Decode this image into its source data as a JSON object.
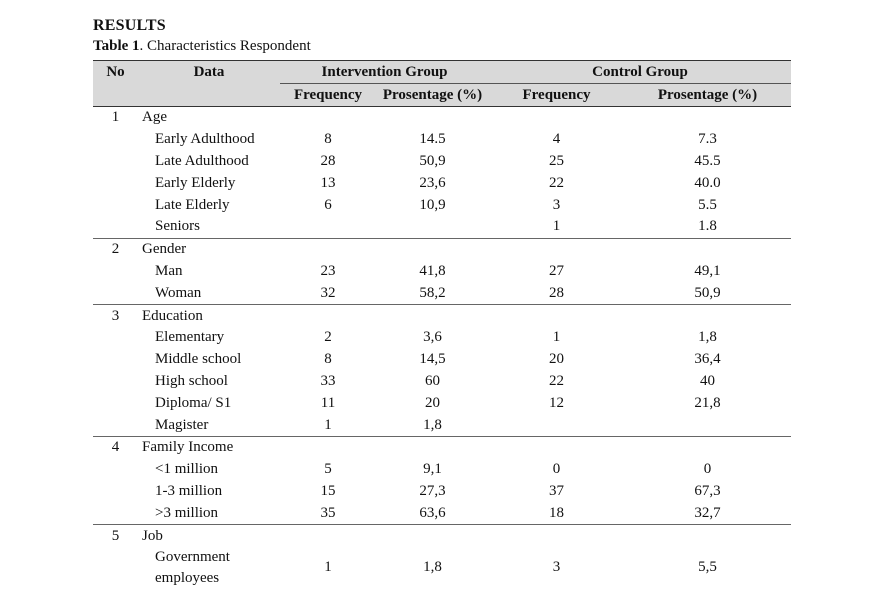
{
  "heading": "RESULTS",
  "caption": {
    "label": "Table 1",
    "text": ". Characteristics Respondent"
  },
  "columns": {
    "no": "No",
    "data": "Data",
    "intervention": "Intervention Group",
    "control": "Control Group",
    "frequency": "Frequency",
    "percentage": "Prosentage (%)"
  },
  "sections": [
    {
      "no": "1",
      "title": "Age",
      "rows": [
        {
          "label": "Early Adulthood",
          "int_f": "8",
          "int_p": "14.5",
          "ctl_f": "4",
          "ctl_p": "7.3"
        },
        {
          "label": "Late Adulthood",
          "int_f": "28",
          "int_p": "50,9",
          "ctl_f": "25",
          "ctl_p": "45.5"
        },
        {
          "label": "Early Elderly",
          "int_f": "13",
          "int_p": "23,6",
          "ctl_f": "22",
          "ctl_p": "40.0"
        },
        {
          "label": "Late Elderly",
          "int_f": "6",
          "int_p": "10,9",
          "ctl_f": "3",
          "ctl_p": "5.5"
        },
        {
          "label": "Seniors",
          "int_f": "",
          "int_p": "",
          "ctl_f": "1",
          "ctl_p": "1.8"
        }
      ]
    },
    {
      "no": "2",
      "title": "Gender",
      "rows": [
        {
          "label": "Man",
          "int_f": "23",
          "int_p": "41,8",
          "ctl_f": "27",
          "ctl_p": "49,1"
        },
        {
          "label": "Woman",
          "int_f": "32",
          "int_p": "58,2",
          "ctl_f": "28",
          "ctl_p": "50,9"
        }
      ]
    },
    {
      "no": "3",
      "title": "Education",
      "rows": [
        {
          "label": "Elementary",
          "int_f": "2",
          "int_p": "3,6",
          "ctl_f": "1",
          "ctl_p": "1,8"
        },
        {
          "label": "Middle school",
          "int_f": "8",
          "int_p": "14,5",
          "ctl_f": "20",
          "ctl_p": "36,4"
        },
        {
          "label": "High school",
          "int_f": "33",
          "int_p": "60",
          "ctl_f": "22",
          "ctl_p": "40"
        },
        {
          "label": "Diploma/ S1",
          "int_f": "11",
          "int_p": "20",
          "ctl_f": "12",
          "ctl_p": "21,8"
        },
        {
          "label": "Magister",
          "int_f": "1",
          "int_p": "1,8",
          "ctl_f": "",
          "ctl_p": ""
        }
      ]
    },
    {
      "no": "4",
      "title": "Family Income",
      "rows": [
        {
          "label": "<1 million",
          "int_f": "5",
          "int_p": "9,1",
          "ctl_f": "0",
          "ctl_p": "0"
        },
        {
          "label": "1-3 million",
          "int_f": "15",
          "int_p": "27,3",
          "ctl_f": "37",
          "ctl_p": "67,3"
        },
        {
          "label": ">3 million",
          "int_f": "35",
          "int_p": "63,6",
          "ctl_f": "18",
          "ctl_p": "32,7"
        }
      ]
    },
    {
      "no": "5",
      "title": "Job",
      "rows": [
        {
          "label": "Government employees",
          "int_f": "1",
          "int_p": "1,8",
          "ctl_f": "3",
          "ctl_p": "5,5"
        }
      ]
    }
  ]
}
